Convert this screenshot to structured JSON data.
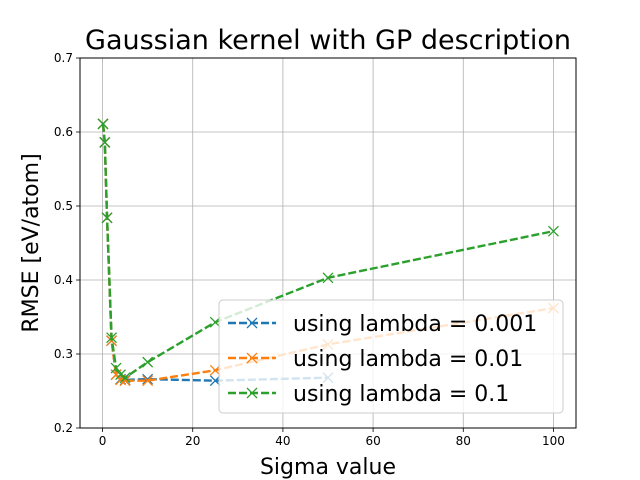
{
  "chart_data": {
    "type": "line",
    "title": "Gaussian kernel with GP description",
    "xlabel": "Sigma value",
    "ylabel": "RMSE [eV/atom]",
    "xlim": [
      -5,
      105
    ],
    "ylim": [
      0.2,
      0.7
    ],
    "xticks": [
      0,
      20,
      40,
      60,
      80,
      100
    ],
    "yticks": [
      0.2,
      0.3,
      0.4,
      0.5,
      0.6,
      0.7
    ],
    "grid": true,
    "legend_position": "lower-right",
    "x": [
      0.1,
      0.5,
      1,
      2,
      3,
      4,
      5,
      10,
      25,
      50,
      100
    ],
    "series": [
      {
        "name": "using lambda = 0.001",
        "color": "#1f77b4",
        "values": [
          0.611,
          0.586,
          0.484,
          0.318,
          0.272,
          0.266,
          0.265,
          0.266,
          0.264,
          0.268,
          null
        ]
      },
      {
        "name": "using lambda = 0.01",
        "color": "#ff7f0e",
        "values": [
          0.611,
          0.586,
          0.484,
          0.318,
          0.272,
          0.265,
          0.264,
          0.264,
          0.278,
          0.313,
          0.362
        ]
      },
      {
        "name": "using lambda = 0.1",
        "color": "#2ca02c",
        "values": [
          0.611,
          0.586,
          0.484,
          0.322,
          0.281,
          0.272,
          0.268,
          0.289,
          0.343,
          0.403,
          0.466
        ]
      }
    ]
  }
}
